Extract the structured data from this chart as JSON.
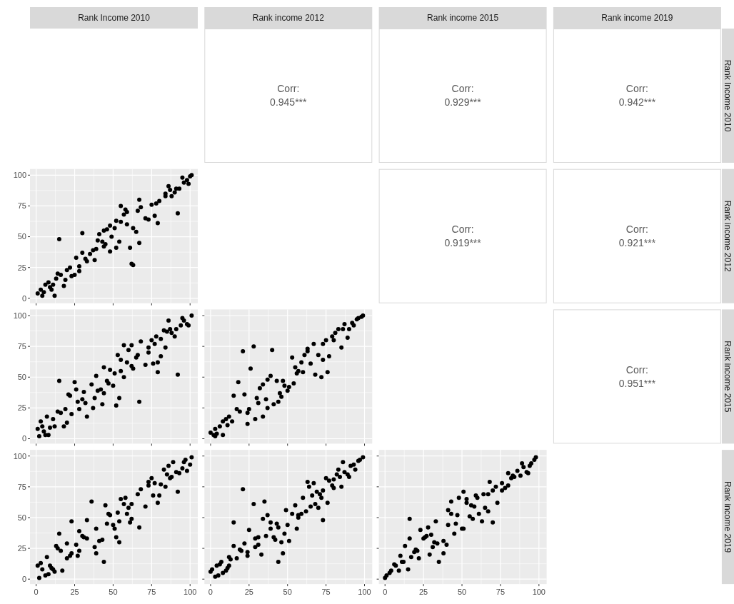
{
  "chart_data": [
    {
      "type": "other",
      "categories": [
        "Rank Income 2010",
        "Rank income 2012",
        "Rank income 2015",
        "Rank income 2019"
      ]
    },
    {
      "type": "other",
      "annotations": [
        "Corr:",
        "0.945***"
      ]
    },
    {
      "type": "other",
      "annotations": [
        "Corr:",
        "0.929***"
      ]
    },
    {
      "type": "other",
      "annotations": [
        "Corr:",
        "0.942***"
      ]
    },
    {
      "type": "scatter",
      "color": "#000000",
      "marker": "circle",
      "grid": true,
      "tick_labels": "y",
      "xlim": [
        -4,
        105
      ],
      "ylim": [
        -4,
        105
      ],
      "xticks": [
        0,
        25,
        50,
        75,
        100
      ],
      "yticks": [
        0,
        25,
        50,
        75,
        100
      ],
      "x": [
        1,
        3,
        4,
        5,
        6,
        8,
        9,
        10,
        11,
        12,
        13,
        15,
        14,
        16,
        18,
        19,
        20,
        22,
        23,
        25,
        26,
        28,
        28,
        30,
        30,
        32,
        33,
        35,
        37,
        38,
        39,
        40,
        41,
        43,
        44,
        45,
        44,
        46,
        48,
        48,
        49,
        51,
        52,
        52,
        54,
        55,
        55,
        57,
        58,
        59,
        59,
        61,
        62,
        63,
        63,
        65,
        66,
        67,
        68,
        67,
        71,
        73,
        75,
        77,
        78,
        79,
        80,
        84,
        84,
        86,
        87,
        88,
        90,
        91,
        92,
        93,
        95,
        96,
        98,
        99,
        100,
        101
      ],
      "values": [
        4,
        7,
        2,
        5,
        11,
        13,
        9,
        7,
        11,
        2,
        16,
        48,
        20,
        19,
        10,
        15,
        23,
        25,
        18,
        19,
        33,
        26,
        22,
        37,
        53,
        32,
        30,
        36,
        39,
        31,
        40,
        47,
        52,
        46,
        42,
        44,
        55,
        56,
        38,
        59,
        50,
        57,
        41,
        63,
        46,
        75,
        62,
        68,
        72,
        70,
        60,
        41,
        28,
        27,
        57,
        54,
        71,
        80,
        74,
        45,
        65,
        64,
        76,
        67,
        77,
        61,
        79,
        85,
        83,
        91,
        88,
        83,
        86,
        89,
        69,
        89,
        98,
        94,
        96,
        93,
        99,
        100
      ]
    },
    {
      "type": "other",
      "annotations": [
        "Corr:",
        "0.919***"
      ]
    },
    {
      "type": "other",
      "annotations": [
        "Corr:",
        "0.921***"
      ]
    },
    {
      "type": "scatter",
      "color": "#000000",
      "marker": "circle",
      "grid": true,
      "tick_labels": "y",
      "xlim": [
        -4,
        105
      ],
      "ylim": [
        -4,
        105
      ],
      "xticks": [
        0,
        25,
        50,
        75,
        100
      ],
      "yticks": [
        0,
        25,
        50,
        75,
        100
      ],
      "x": [
        1,
        2,
        3,
        4,
        5,
        6,
        7,
        8,
        9,
        11,
        12,
        14,
        15,
        16,
        18,
        19,
        20,
        21,
        22,
        23,
        25,
        26,
        27,
        28,
        30,
        31,
        32,
        33,
        36,
        37,
        38,
        39,
        40,
        42,
        43,
        44,
        44,
        46,
        47,
        48,
        50,
        51,
        52,
        53,
        54,
        55,
        55,
        57,
        57,
        59,
        60,
        62,
        62,
        63,
        65,
        66,
        67,
        68,
        71,
        73,
        73,
        75,
        76,
        77,
        78,
        79,
        79,
        81,
        81,
        84,
        83,
        85,
        86,
        87,
        88,
        90,
        91,
        92,
        94,
        95,
        96,
        98,
        99,
        101
      ],
      "values": [
        8,
        2,
        14,
        10,
        6,
        3,
        18,
        3,
        9,
        16,
        10,
        22,
        47,
        21,
        10,
        24,
        13,
        36,
        35,
        20,
        46,
        40,
        30,
        24,
        32,
        38,
        29,
        18,
        44,
        25,
        33,
        51,
        39,
        40,
        28,
        37,
        58,
        47,
        45,
        56,
        43,
        53,
        27,
        68,
        33,
        64,
        55,
        76,
        50,
        62,
        72,
        76,
        59,
        57,
        66,
        68,
        30,
        79,
        60,
        70,
        74,
        80,
        61,
        77,
        83,
        54,
        62,
        67,
        81,
        74,
        88,
        87,
        96,
        89,
        86,
        83,
        89,
        52,
        92,
        98,
        96,
        93,
        92,
        100
      ]
    },
    {
      "type": "scatter",
      "color": "#000000",
      "marker": "circle",
      "grid": true,
      "tick_labels": false,
      "xlim": [
        -4,
        105
      ],
      "ylim": [
        -4,
        105
      ],
      "xticks": [
        0,
        25,
        50,
        75,
        100
      ],
      "yticks": [
        0,
        25,
        50,
        75,
        100
      ],
      "x": [
        0,
        2,
        3,
        3,
        4,
        6,
        8,
        8,
        10,
        11,
        12,
        14,
        15,
        17,
        18,
        19,
        21,
        22,
        24,
        24,
        25,
        26,
        28,
        29,
        30,
        31,
        32,
        34,
        34,
        36,
        37,
        37,
        39,
        40,
        41,
        43,
        44,
        45,
        46,
        47,
        48,
        50,
        51,
        53,
        54,
        55,
        56,
        57,
        59,
        60,
        61,
        63,
        63,
        65,
        67,
        68,
        70,
        72,
        73,
        73,
        75,
        76,
        77,
        79,
        80,
        81,
        83,
        85,
        86,
        87,
        89,
        90,
        92,
        93,
        95,
        96,
        98,
        99
      ],
      "values": [
        5,
        3,
        8,
        2,
        4,
        10,
        14,
        3,
        16,
        11,
        18,
        14,
        35,
        24,
        46,
        22,
        71,
        36,
        21,
        12,
        24,
        57,
        75,
        16,
        33,
        29,
        41,
        18,
        44,
        32,
        48,
        25,
        51,
        72,
        28,
        47,
        30,
        37,
        34,
        47,
        43,
        39,
        42,
        66,
        45,
        58,
        53,
        55,
        62,
        54,
        68,
        71,
        73,
        61,
        77,
        52,
        68,
        50,
        77,
        64,
        80,
        54,
        67,
        83,
        80,
        86,
        89,
        74,
        89,
        93,
        82,
        89,
        94,
        92,
        97,
        98,
        99,
        100
      ]
    },
    {
      "type": "other",
      "annotations": [
        "Corr:",
        "0.951***"
      ]
    },
    {
      "type": "scatter",
      "color": "#000000",
      "marker": "circle",
      "grid": true,
      "xlim": [
        -4,
        105
      ],
      "ylim": [
        -4,
        105
      ],
      "xticks": [
        0,
        25,
        50,
        75,
        100
      ],
      "yticks": [
        0,
        25,
        50,
        75,
        100
      ],
      "x": [
        1,
        2,
        3,
        4,
        6,
        7,
        8,
        9,
        10,
        11,
        12,
        13,
        14,
        15,
        16,
        17,
        20,
        20,
        22,
        23,
        23,
        26,
        27,
        28,
        28,
        30,
        31,
        33,
        33,
        36,
        38,
        39,
        39,
        41,
        43,
        44,
        45,
        46,
        47,
        48,
        50,
        51,
        52,
        53,
        54,
        54,
        55,
        57,
        58,
        59,
        60,
        61,
        62,
        62,
        66,
        67,
        68,
        71,
        73,
        73,
        75,
        76,
        77,
        79,
        80,
        81,
        83,
        84,
        85,
        86,
        87,
        88,
        89,
        91,
        92,
        93,
        95,
        96,
        97,
        98,
        100,
        101
      ],
      "values": [
        11,
        1,
        13,
        8,
        3,
        18,
        4,
        11,
        9,
        8,
        6,
        27,
        25,
        37,
        23,
        7,
        17,
        29,
        19,
        47,
        21,
        28,
        19,
        23,
        39,
        35,
        34,
        48,
        33,
        63,
        26,
        41,
        21,
        31,
        32,
        14,
        60,
        45,
        53,
        52,
        44,
        41,
        34,
        54,
        30,
        47,
        65,
        61,
        66,
        53,
        58,
        46,
        61,
        49,
        69,
        42,
        73,
        59,
        79,
        76,
        82,
        68,
        78,
        62,
        68,
        77,
        89,
        75,
        85,
        92,
        82,
        83,
        95,
        87,
        71,
        86,
        90,
        95,
        97,
        88,
        93,
        99
      ]
    },
    {
      "type": "scatter",
      "color": "#000000",
      "marker": "circle",
      "grid": true,
      "tick_labels": "x",
      "xlim": [
        -4,
        105
      ],
      "ylim": [
        -4,
        105
      ],
      "xticks": [
        0,
        25,
        50,
        75,
        100
      ],
      "yticks": [
        0,
        25,
        50,
        75,
        100
      ],
      "x": [
        0,
        1,
        3,
        4,
        5,
        6,
        7,
        8,
        10,
        11,
        12,
        12,
        13,
        15,
        15,
        17,
        19,
        20,
        22,
        21,
        24,
        24,
        25,
        28,
        29,
        29,
        31,
        31,
        33,
        34,
        35,
        36,
        37,
        39,
        39,
        41,
        42,
        43,
        44,
        44,
        46,
        47,
        48,
        49,
        50,
        51,
        53,
        55,
        56,
        57,
        57,
        59,
        60,
        62,
        63,
        64,
        65,
        66,
        67,
        68,
        69,
        70,
        71,
        72,
        73,
        73,
        75,
        76,
        77,
        79,
        80,
        80,
        82,
        83,
        84,
        85,
        86,
        87,
        89,
        90,
        91,
        93,
        94,
        96,
        97,
        99
      ],
      "values": [
        6,
        8,
        2,
        11,
        3,
        12,
        14,
        5,
        7,
        9,
        11,
        18,
        16,
        27,
        46,
        17,
        24,
        23,
        29,
        73,
        22,
        19,
        40,
        61,
        33,
        26,
        34,
        28,
        20,
        49,
        63,
        35,
        52,
        41,
        46,
        34,
        32,
        45,
        42,
        14,
        30,
        21,
        37,
        56,
        44,
        31,
        53,
        60,
        41,
        50,
        52,
        53,
        66,
        55,
        79,
        75,
        59,
        68,
        78,
        61,
        71,
        58,
        69,
        66,
        72,
        48,
        82,
        62,
        80,
        76,
        74,
        81,
        85,
        89,
        83,
        75,
        95,
        87,
        85,
        83,
        92,
        93,
        89,
        96,
        97,
        99
      ]
    },
    {
      "type": "scatter",
      "color": "#000000",
      "marker": "circle",
      "grid": true,
      "tick_labels": "x",
      "xlim": [
        -4,
        105
      ],
      "ylim": [
        -4,
        105
      ],
      "xticks": [
        0,
        25,
        50,
        75,
        100
      ],
      "yticks": [
        0,
        25,
        50,
        75,
        100
      ],
      "x": [
        0,
        1,
        3,
        4,
        6,
        7,
        9,
        10,
        11,
        12,
        13,
        15,
        16,
        16,
        17,
        19,
        20,
        21,
        22,
        23,
        25,
        26,
        27,
        28,
        29,
        30,
        31,
        32,
        33,
        34,
        35,
        38,
        38,
        40,
        41,
        41,
        43,
        43,
        45,
        46,
        47,
        48,
        50,
        51,
        51,
        53,
        53,
        55,
        56,
        57,
        58,
        59,
        60,
        61,
        63,
        64,
        65,
        67,
        67,
        68,
        70,
        70,
        72,
        73,
        76,
        76,
        78,
        80,
        80,
        82,
        83,
        84,
        86,
        88,
        89,
        90,
        92,
        93,
        94,
        95,
        97,
        98
      ],
      "values": [
        1,
        3,
        5,
        7,
        12,
        11,
        7,
        19,
        14,
        14,
        27,
        8,
        33,
        49,
        18,
        22,
        24,
        23,
        17,
        40,
        33,
        34,
        35,
        42,
        20,
        36,
        26,
        30,
        47,
        29,
        14,
        21,
        31,
        28,
        56,
        44,
        63,
        53,
        37,
        45,
        52,
        66,
        41,
        71,
        41,
        62,
        65,
        51,
        60,
        49,
        59,
        68,
        66,
        53,
        47,
        69,
        58,
        55,
        69,
        79,
        72,
        46,
        75,
        62,
        78,
        72,
        74,
        76,
        86,
        82,
        84,
        83,
        88,
        84,
        94,
        91,
        87,
        86,
        92,
        94,
        97,
        99
      ]
    },
    {
      "type": "other",
      "y_categories": [
        "Rank Income 2010",
        "Rank income 2012",
        "Rank income 2015",
        "Rank income 2019"
      ]
    }
  ]
}
